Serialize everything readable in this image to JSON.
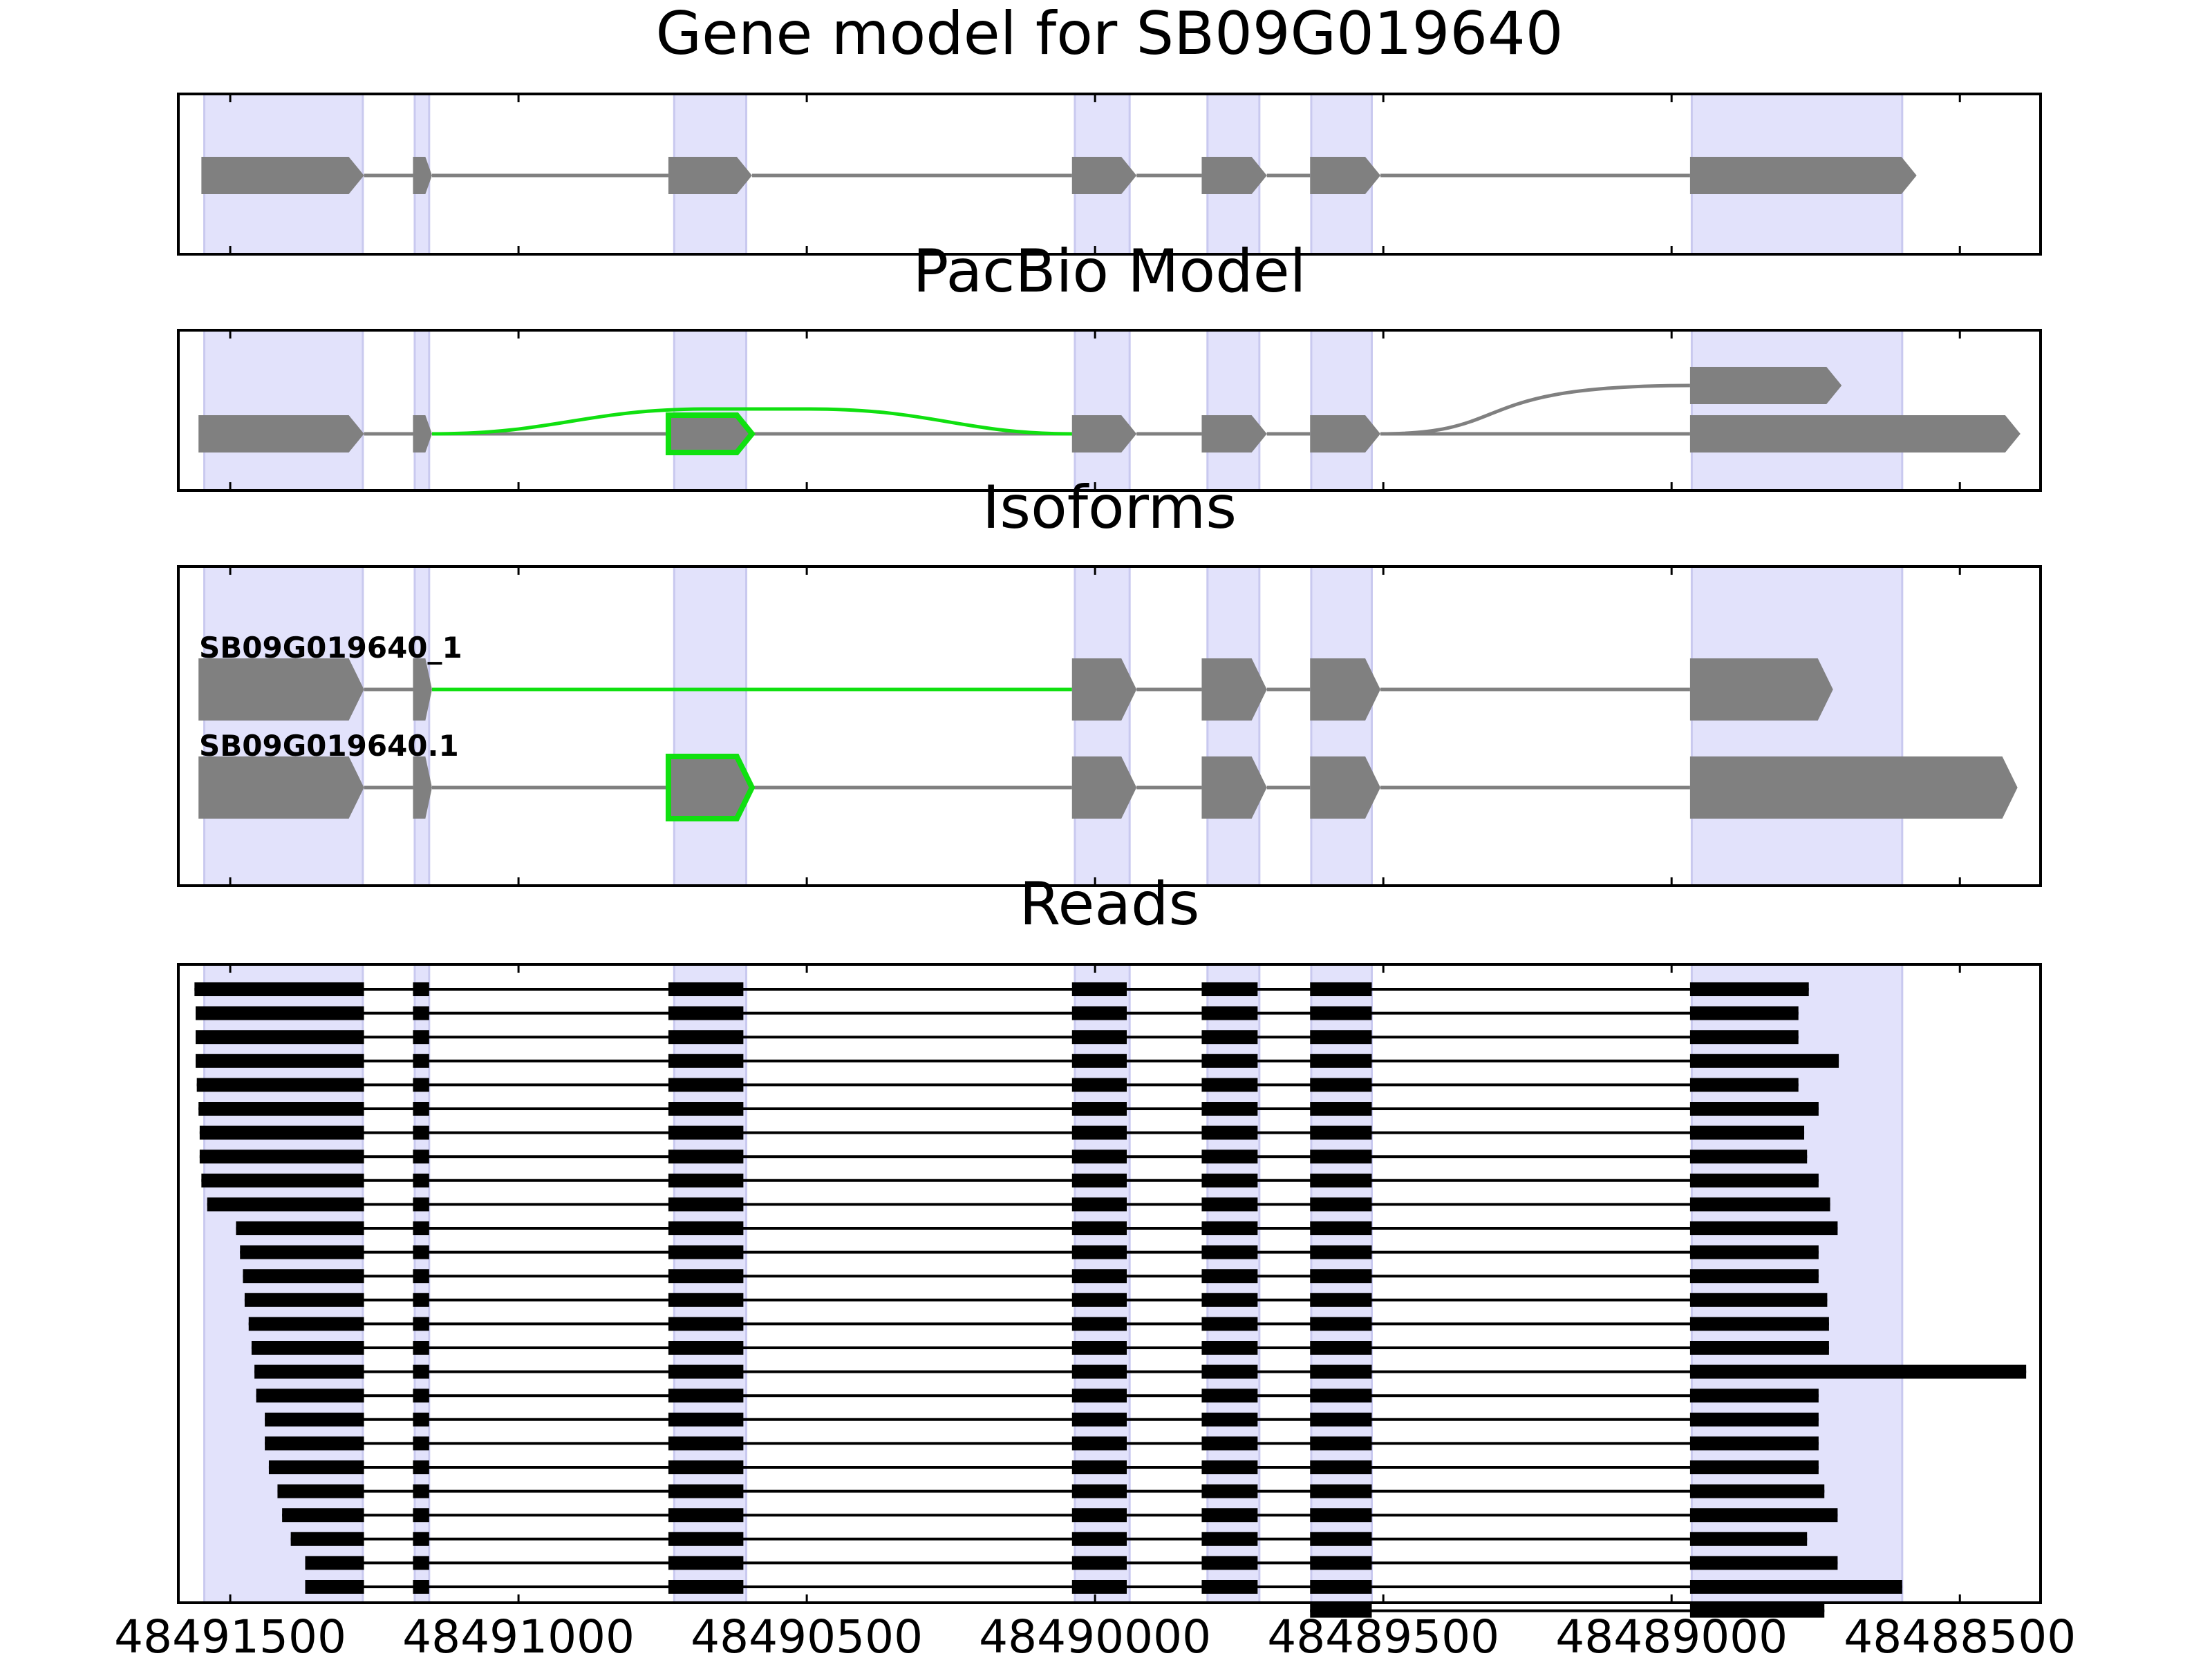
{
  "chart_data": {
    "type": "gene-model",
    "axis": {
      "reversed": true,
      "xlim": [
        48491590,
        48488360
      ],
      "tick_values": [
        48491500,
        48491000,
        48490500,
        48490000,
        48489500,
        48489000,
        48488500
      ],
      "tick_labels": [
        "48491500",
        "48491000",
        "48490500",
        "48490000",
        "48489500",
        "48489000",
        "48488500"
      ]
    },
    "highlight_regions": [
      [
        48491545,
        48491270
      ],
      [
        48491180,
        48491155
      ],
      [
        48490730,
        48490605
      ],
      [
        48490035,
        48489940
      ],
      [
        48489805,
        48489715
      ],
      [
        48489625,
        48489520
      ],
      [
        48488965,
        48488600
      ]
    ],
    "colors": {
      "exon": "#808080",
      "intron": "#808080",
      "highlight": "#e2e2fb",
      "novel": "#10e010",
      "read": "#000000"
    },
    "panels": [
      {
        "id": "gene",
        "title": "Gene model for SB09G019640",
        "tracks": [
          {
            "label": "",
            "exons": [
              [
                48491550,
                48491268
              ],
              [
                48491183,
                48491150
              ],
              [
                48490740,
                48490595
              ],
              [
                48490040,
                48489928
              ],
              [
                48489815,
                48489702
              ],
              [
                48489627,
                48489505
              ],
              [
                48488968,
                48488575
              ]
            ],
            "novel_exons": [],
            "novel_junctions": []
          }
        ],
        "branch": null
      },
      {
        "id": "pacbio",
        "title": "PacBio Model",
        "tracks": [
          {
            "label": "",
            "exons": [
              [
                48491555,
                48491268
              ],
              [
                48491183,
                48491150
              ],
              [
                48490740,
                48490595
              ],
              [
                48490040,
                48489928
              ],
              [
                48489815,
                48489702
              ],
              [
                48489627,
                48489505
              ],
              [
                48488968,
                48488395
              ]
            ],
            "novel_exons": [
              2
            ],
            "novel_junctions": [
              [
                1,
                3
              ]
            ]
          }
        ],
        "branch": {
          "from_exon": 5,
          "exons": [
            [
              48488968,
              48488705
            ]
          ]
        }
      },
      {
        "id": "isoforms",
        "title": "Isoforms",
        "tracks": [
          {
            "label": "SB09G019640_1",
            "exons": [
              [
                48491555,
                48491268
              ],
              [
                48491183,
                48491150
              ],
              [
                48490040,
                48489928
              ],
              [
                48489815,
                48489702
              ],
              [
                48489627,
                48489505
              ],
              [
                48488968,
                48488720
              ]
            ],
            "novel_exons": [],
            "novel_junctions": [
              [
                1,
                2
              ]
            ]
          },
          {
            "label": "SB09G019640.1",
            "exons": [
              [
                48491555,
                48491268
              ],
              [
                48491183,
                48491150
              ],
              [
                48490740,
                48490595
              ],
              [
                48490040,
                48489928
              ],
              [
                48489815,
                48489702
              ],
              [
                48489627,
                48489505
              ],
              [
                48488968,
                48488400
              ]
            ],
            "novel_exons": [
              2
            ],
            "novel_junctions": []
          }
        ],
        "branch": null
      }
    ],
    "reads": {
      "title": "Reads",
      "core_exons": [
        [
          48491183,
          48491155
        ],
        [
          48490740,
          48490610
        ],
        [
          48490040,
          48489945
        ],
        [
          48489815,
          48489718
        ],
        [
          48489627,
          48489520
        ]
      ],
      "first_exon_end": 48491268,
      "last_exon_start": 48488968,
      "items": [
        {
          "start": 48491562,
          "end": 48488762
        },
        {
          "start": 48491560,
          "end": 48488780
        },
        {
          "start": 48491560,
          "end": 48488780
        },
        {
          "start": 48491560,
          "end": 48488710
        },
        {
          "start": 48491558,
          "end": 48488780
        },
        {
          "start": 48491555,
          "end": 48488745
        },
        {
          "start": 48491553,
          "end": 48488770
        },
        {
          "start": 48491553,
          "end": 48488765
        },
        {
          "start": 48491550,
          "end": 48488745
        },
        {
          "start": 48491540,
          "end": 48488725
        },
        {
          "start": 48491490,
          "end": 48488712
        },
        {
          "start": 48491483,
          "end": 48488745
        },
        {
          "start": 48491478,
          "end": 48488745
        },
        {
          "start": 48491475,
          "end": 48488730
        },
        {
          "start": 48491468,
          "end": 48488727
        },
        {
          "start": 48491463,
          "end": 48488727
        },
        {
          "start": 48491458,
          "end": 48488385
        },
        {
          "start": 48491455,
          "end": 48488745
        },
        {
          "start": 48491440,
          "end": 48488745
        },
        {
          "start": 48491440,
          "end": 48488745
        },
        {
          "start": 48491433,
          "end": 48488745
        },
        {
          "start": 48491418,
          "end": 48488735
        },
        {
          "start": 48491410,
          "end": 48488712
        },
        {
          "start": 48491395,
          "end": 48488765
        },
        {
          "start": 48491370,
          "end": 48488712
        },
        {
          "start": 48491370,
          "end": 48488600
        },
        {
          "start": 48489765,
          "end": 48488735
        }
      ]
    }
  }
}
